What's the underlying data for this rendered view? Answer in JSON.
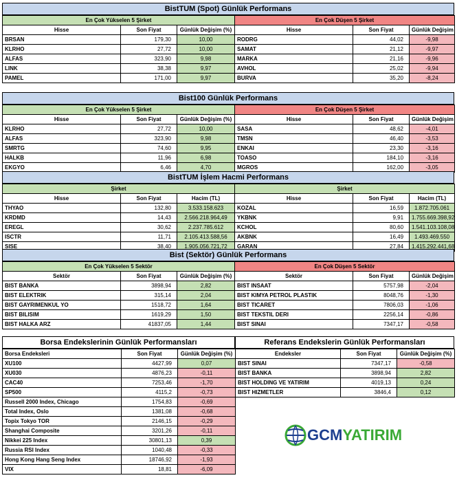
{
  "s1": {
    "title": "BistTUM (Spot) Günlük Performans",
    "up_title": "En Çok Yükselen 5 Şirket",
    "down_title": "En Çok Düşen 5 Şirket",
    "cols": [
      "Hisse",
      "Son Fiyat",
      "Günlük Değişim (%)"
    ],
    "up": [
      [
        "BRSAN",
        "179,30",
        "10,00"
      ],
      [
        "KLRHO",
        "27,72",
        "10,00"
      ],
      [
        "ALFAS",
        "323,90",
        "9,98"
      ],
      [
        "LINK",
        "38,38",
        "9,97"
      ],
      [
        "PAMEL",
        "171,00",
        "9,97"
      ]
    ],
    "down": [
      [
        "RODRG",
        "44,02",
        "-9,98"
      ],
      [
        "SAMAT",
        "21,12",
        "-9,97"
      ],
      [
        "MARKA",
        "21,16",
        "-9,96"
      ],
      [
        "AVHOL",
        "25,02",
        "-9,94"
      ],
      [
        "BURVA",
        "35,20",
        "-8,24"
      ]
    ]
  },
  "s2": {
    "title": "Bist100 Günlük Performans",
    "up_title": "En Çok Yükselen 5 Şirket",
    "down_title": "En Çok Düşen 5 Şirket",
    "cols": [
      "Hisse",
      "Son Fiyat",
      "Günlük Değişim (%)"
    ],
    "up": [
      [
        "KLRHO",
        "27,72",
        "10,00"
      ],
      [
        "ALFAS",
        "323,90",
        "9,98"
      ],
      [
        "SMRTG",
        "74,60",
        "9,95"
      ],
      [
        "HALKB",
        "11,96",
        "6,98"
      ],
      [
        "EKGYO",
        "6,46",
        "4,70"
      ]
    ],
    "down": [
      [
        "SASA",
        "48,62",
        "-4,01"
      ],
      [
        "TMSN",
        "46,40",
        "-3,53"
      ],
      [
        "ENKAI",
        "23,30",
        "-3,16"
      ],
      [
        "TOASO",
        "184,10",
        "-3,16"
      ],
      [
        "MGROS",
        "162,00",
        "-3,05"
      ]
    ]
  },
  "s3": {
    "title": "BistTUM İşlem Hacmi Performans",
    "left_title": "Şirket",
    "right_title": "Şirket",
    "cols": [
      "Hisse",
      "Son Fiyat",
      "Hacim (TL)"
    ],
    "left": [
      [
        "THYAO",
        "132,80",
        "3.533.158.623"
      ],
      [
        "KRDMD",
        "14,43",
        "2.566.218.964,49"
      ],
      [
        "EREGL",
        "30,62",
        "2.237.785.612"
      ],
      [
        "ISCTR",
        "11,71",
        "2.105.413.588,56"
      ],
      [
        "SISE",
        "38,40",
        "1.905.056.721,72"
      ]
    ],
    "right": [
      [
        "KOZAL",
        "16,59",
        "1.872.705.061"
      ],
      [
        "YKBNK",
        "9,91",
        "1.755.669.398,92"
      ],
      [
        "KCHOL",
        "80,60",
        "1.541.103.108,08"
      ],
      [
        "AKBNK",
        "16,49",
        "1.493.469.550"
      ],
      [
        "GARAN",
        "27,84",
        "1.415.292.441,68"
      ]
    ]
  },
  "s4": {
    "title": "Bist (Sektör) Günlük Performans",
    "up_title": "En Çok Yükselen 5 Sektör",
    "down_title": "En Çok Düşen 5 Sektör",
    "cols": [
      "Sektör",
      "Son Fiyat",
      "Günlük Değişim (%)"
    ],
    "up": [
      [
        "BIST BANKA",
        "3898,94",
        "2,82"
      ],
      [
        "BIST ELEKTRIK",
        "315,14",
        "2,04"
      ],
      [
        "BIST GAYRIMENKUL YO",
        "1518,72",
        "1,64"
      ],
      [
        "BIST BILISIM",
        "1619,29",
        "1,50"
      ],
      [
        "BIST HALKA ARZ",
        "41837,05",
        "1,44"
      ]
    ],
    "down": [
      [
        "BIST INSAAT",
        "5757,98",
        "-2,04"
      ],
      [
        "BIST KIMYA PETROL PLASTIK",
        "8048,76",
        "-1,30"
      ],
      [
        "BIST TICARET",
        "7806,03",
        "-1,06"
      ],
      [
        "BIST TEKSTIL DERI",
        "2256,14",
        "-0,86"
      ],
      [
        "BIST SINAI",
        "7347,17",
        "-0,58"
      ]
    ]
  },
  "s5": {
    "title": "Borsa Endekslerinin Günlük Performansları",
    "cols": [
      "Borsa Endeksleri",
      "Son Fiyat",
      "Günlük Değişim (%)"
    ],
    "rows": [
      [
        "XU100",
        "4427,99",
        "0,07"
      ],
      [
        "XU030",
        "4876,23",
        "-0,11"
      ],
      [
        "CAC40",
        "7253,46",
        "-1,70"
      ],
      [
        "SP500",
        "4115,2",
        "-0,73"
      ],
      [
        "Russell 2000 Index, Chicago",
        "1754,83",
        "-0,69"
      ],
      [
        "Total Index, Oslo",
        "1381,08",
        "-0,68"
      ],
      [
        "Topix Tokyo TOR",
        "2146,15",
        "-0,29"
      ],
      [
        "Shanghai Composite",
        "3201,26",
        "-0,11"
      ],
      [
        "Nikkei 225 Index",
        "30801,13",
        "0,39"
      ],
      [
        "Russia RSI Index",
        "1040,48",
        "-0,33"
      ],
      [
        "Hong Kong Hang Seng Index",
        "18746,92",
        "-1,93"
      ],
      [
        "VIX",
        "18,81",
        "-6,09"
      ]
    ]
  },
  "s6": {
    "title": "Referans Endekslerin  Günlük Performansları",
    "cols": [
      "Endeksler",
      "Son Fiyat",
      "Günlük Değişim (%)"
    ],
    "rows": [
      [
        "BIST SINAI",
        "7347,17",
        "-0,58"
      ],
      [
        "BIST BANKA",
        "3898,94",
        "2,82"
      ],
      [
        "BIST HOLDING VE YATIRIM",
        "4019,13",
        "0,24"
      ],
      [
        "BIST HIZMETLER",
        "3846,4",
        "0,12"
      ]
    ]
  },
  "logo": {
    "text": "GCMYATIRIM",
    "color_blue": "#1d3f8f",
    "color_green": "#3aa935"
  }
}
